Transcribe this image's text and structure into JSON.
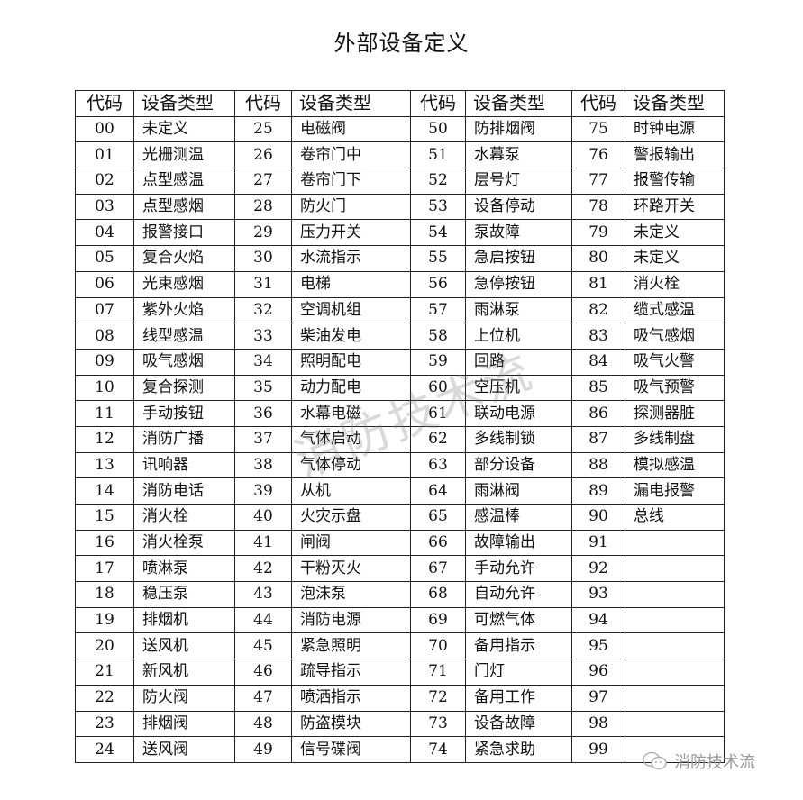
{
  "title": "外部设备定义",
  "table": {
    "headers": [
      "代码",
      "设备类型",
      "代码",
      "设备类型",
      "代码",
      "设备类型",
      "代码",
      "设备类型"
    ],
    "rows": [
      [
        "00",
        "未定义",
        "25",
        "电磁阀",
        "50",
        "防排烟阀",
        "75",
        "时钟电源"
      ],
      [
        "01",
        "光栅测温",
        "26",
        "卷帘门中",
        "51",
        "水幕泵",
        "76",
        "警报输出"
      ],
      [
        "02",
        "点型感温",
        "27",
        "卷帘门下",
        "52",
        "层号灯",
        "77",
        "报警传输"
      ],
      [
        "03",
        "点型感烟",
        "28",
        "防火门",
        "53",
        "设备停动",
        "78",
        "环路开关"
      ],
      [
        "04",
        "报警接口",
        "29",
        "压力开关",
        "54",
        "泵故障",
        "79",
        "未定义"
      ],
      [
        "05",
        "复合火焰",
        "30",
        "水流指示",
        "55",
        "急启按钮",
        "80",
        "未定义"
      ],
      [
        "06",
        "光束感烟",
        "31",
        "电梯",
        "56",
        "急停按钮",
        "81",
        "消火栓"
      ],
      [
        "07",
        "紫外火焰",
        "32",
        "空调机组",
        "57",
        "雨淋泵",
        "82",
        "缆式感温"
      ],
      [
        "08",
        "线型感温",
        "33",
        "柴油发电",
        "58",
        "上位机",
        "83",
        "吸气感烟"
      ],
      [
        "09",
        "吸气感烟",
        "34",
        "照明配电",
        "59",
        "回路",
        "84",
        "吸气火警"
      ],
      [
        "10",
        "复合探测",
        "35",
        "动力配电",
        "60",
        "空压机",
        "85",
        "吸气预警"
      ],
      [
        "11",
        "手动按钮",
        "36",
        "水幕电磁",
        "61",
        "联动电源",
        "86",
        "探测器脏"
      ],
      [
        "12",
        "消防广播",
        "37",
        "气体启动",
        "62",
        "多线制锁",
        "87",
        "多线制盘"
      ],
      [
        "13",
        "讯响器",
        "38",
        "气体停动",
        "63",
        "部分设备",
        "88",
        "模拟感温"
      ],
      [
        "14",
        "消防电话",
        "39",
        "从机",
        "64",
        "雨淋阀",
        "89",
        "漏电报警"
      ],
      [
        "15",
        "消火栓",
        "40",
        "火灾示盘",
        "65",
        "感温棒",
        "90",
        "总线"
      ],
      [
        "16",
        "消火栓泵",
        "41",
        "闸阀",
        "66",
        "故障输出",
        "91",
        ""
      ],
      [
        "17",
        "喷淋泵",
        "42",
        "干粉灭火",
        "67",
        "手动允许",
        "92",
        ""
      ],
      [
        "18",
        "稳压泵",
        "43",
        "泡沫泵",
        "68",
        "自动允许",
        "93",
        ""
      ],
      [
        "19",
        "排烟机",
        "44",
        "消防电源",
        "69",
        "可燃气体",
        "94",
        ""
      ],
      [
        "20",
        "送风机",
        "45",
        "紧急照明",
        "70",
        "备用指示",
        "95",
        ""
      ],
      [
        "21",
        "新风机",
        "46",
        "疏导指示",
        "71",
        "门灯",
        "96",
        ""
      ],
      [
        "22",
        "防火阀",
        "47",
        "喷洒指示",
        "72",
        "备用工作",
        "97",
        ""
      ],
      [
        "23",
        "排烟阀",
        "48",
        "防盗模块",
        "73",
        "设备故障",
        "98",
        ""
      ],
      [
        "24",
        "送风阀",
        "49",
        "信号碟阀",
        "74",
        "紧急求助",
        "99",
        ""
      ]
    ]
  },
  "watermark": "消防技术流",
  "logo": {
    "icon": "wechat-icon",
    "text": "消防技术流"
  }
}
